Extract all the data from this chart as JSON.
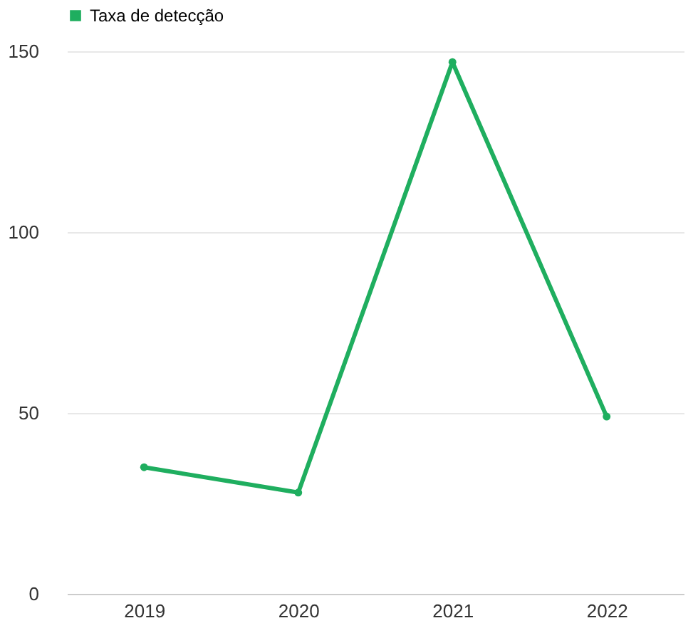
{
  "chart_data": {
    "type": "line",
    "categories": [
      "2019",
      "2020",
      "2021",
      "2022"
    ],
    "series": [
      {
        "name": "Taxa de detecção",
        "color": "#1fae5f",
        "values": [
          35,
          28,
          147,
          49
        ]
      }
    ],
    "ylim": [
      0,
      150
    ],
    "yticks": [
      0,
      50,
      100,
      150
    ],
    "grid": "y",
    "legend": "top",
    "marker": "circle",
    "line_style": "solid"
  }
}
